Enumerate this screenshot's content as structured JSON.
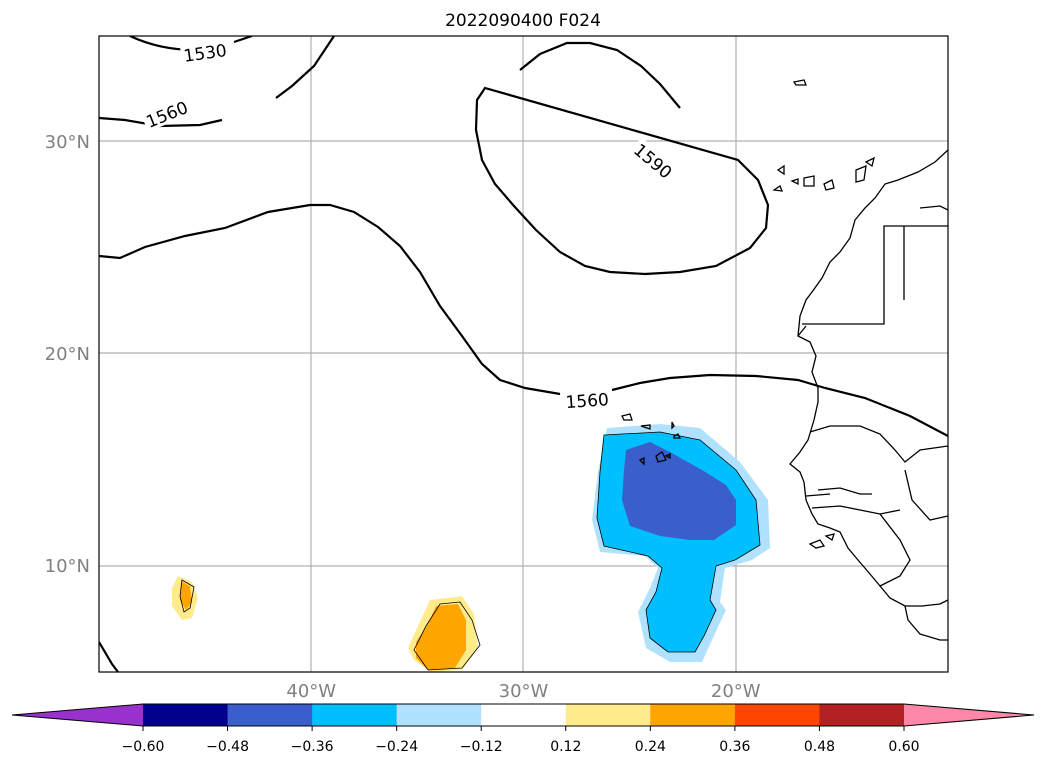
{
  "title": "2022090400 F024",
  "map": {
    "lat_ticks": [
      {
        "label": "30°N",
        "lat": 30
      },
      {
        "label": "20°N",
        "lat": 20
      },
      {
        "label": "10°N",
        "lat": 10
      }
    ],
    "lon_ticks": [
      {
        "label": "40°W",
        "lon": -40
      },
      {
        "label": "30°W",
        "lon": -30
      },
      {
        "label": "20°W",
        "lon": -20
      }
    ],
    "extent": {
      "lon_min": -50,
      "lon_max": -10,
      "lat_min": 5,
      "lat_max": 35
    },
    "contour_labels": [
      {
        "text": "1530",
        "lon": -45,
        "lat": 34.2
      },
      {
        "text": "1560",
        "lon": -46.8,
        "lat": 31.3
      },
      {
        "text": "1590",
        "lon": -23.9,
        "lat": 29.1
      },
      {
        "text": "1560",
        "lon": -27,
        "lat": 17.8
      }
    ]
  },
  "colorbar": {
    "ticks": [
      "−0.60",
      "−0.48",
      "−0.36",
      "−0.24",
      "−0.12",
      "0.12",
      "0.24",
      "0.36",
      "0.48",
      "0.60"
    ],
    "colors": [
      "#9932cc",
      "#00008b",
      "#3a5fcd",
      "#00bfff",
      "#b0e2ff",
      "#ffffff",
      "#ffeb8c",
      "#ffa500",
      "#ff4500",
      "#b22222",
      "#ff88aa"
    ]
  }
}
